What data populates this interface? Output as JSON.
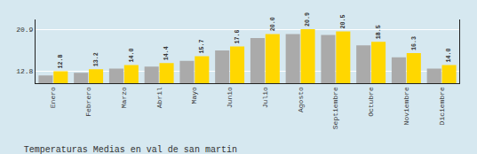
{
  "chart_data": {
    "type": "bar",
    "title": "Temperaturas Medias en val de san martin",
    "categories": [
      "Enero",
      "Febrero",
      "Marzo",
      "Abril",
      "Mayo",
      "Junio",
      "Julio",
      "Agosto",
      "Septiembre",
      "Octubre",
      "Noviembre",
      "Diciembre"
    ],
    "series": [
      {
        "color": "#AAAAAA",
        "values": [
          12.0,
          12.5,
          13.3,
          13.7,
          14.8,
          16.8,
          19.2,
          20.0,
          19.8,
          17.8,
          15.5,
          13.3
        ]
      },
      {
        "color": "#FFD700",
        "values": [
          12.8,
          13.2,
          14.0,
          14.4,
          15.7,
          17.6,
          20.0,
          20.9,
          20.5,
          18.5,
          16.3,
          14.0
        ],
        "value_labels": [
          "12.8",
          "13.2",
          "14.0",
          "14.4",
          "15.7",
          "17.6",
          "20.0",
          "20.9",
          "20.5",
          "18.5",
          "16.3",
          "14.0"
        ],
        "data_labels": true
      }
    ],
    "ylim": [
      10.5,
      22.8
    ],
    "yticks": [
      12.8,
      20.9
    ],
    "grid": true
  }
}
